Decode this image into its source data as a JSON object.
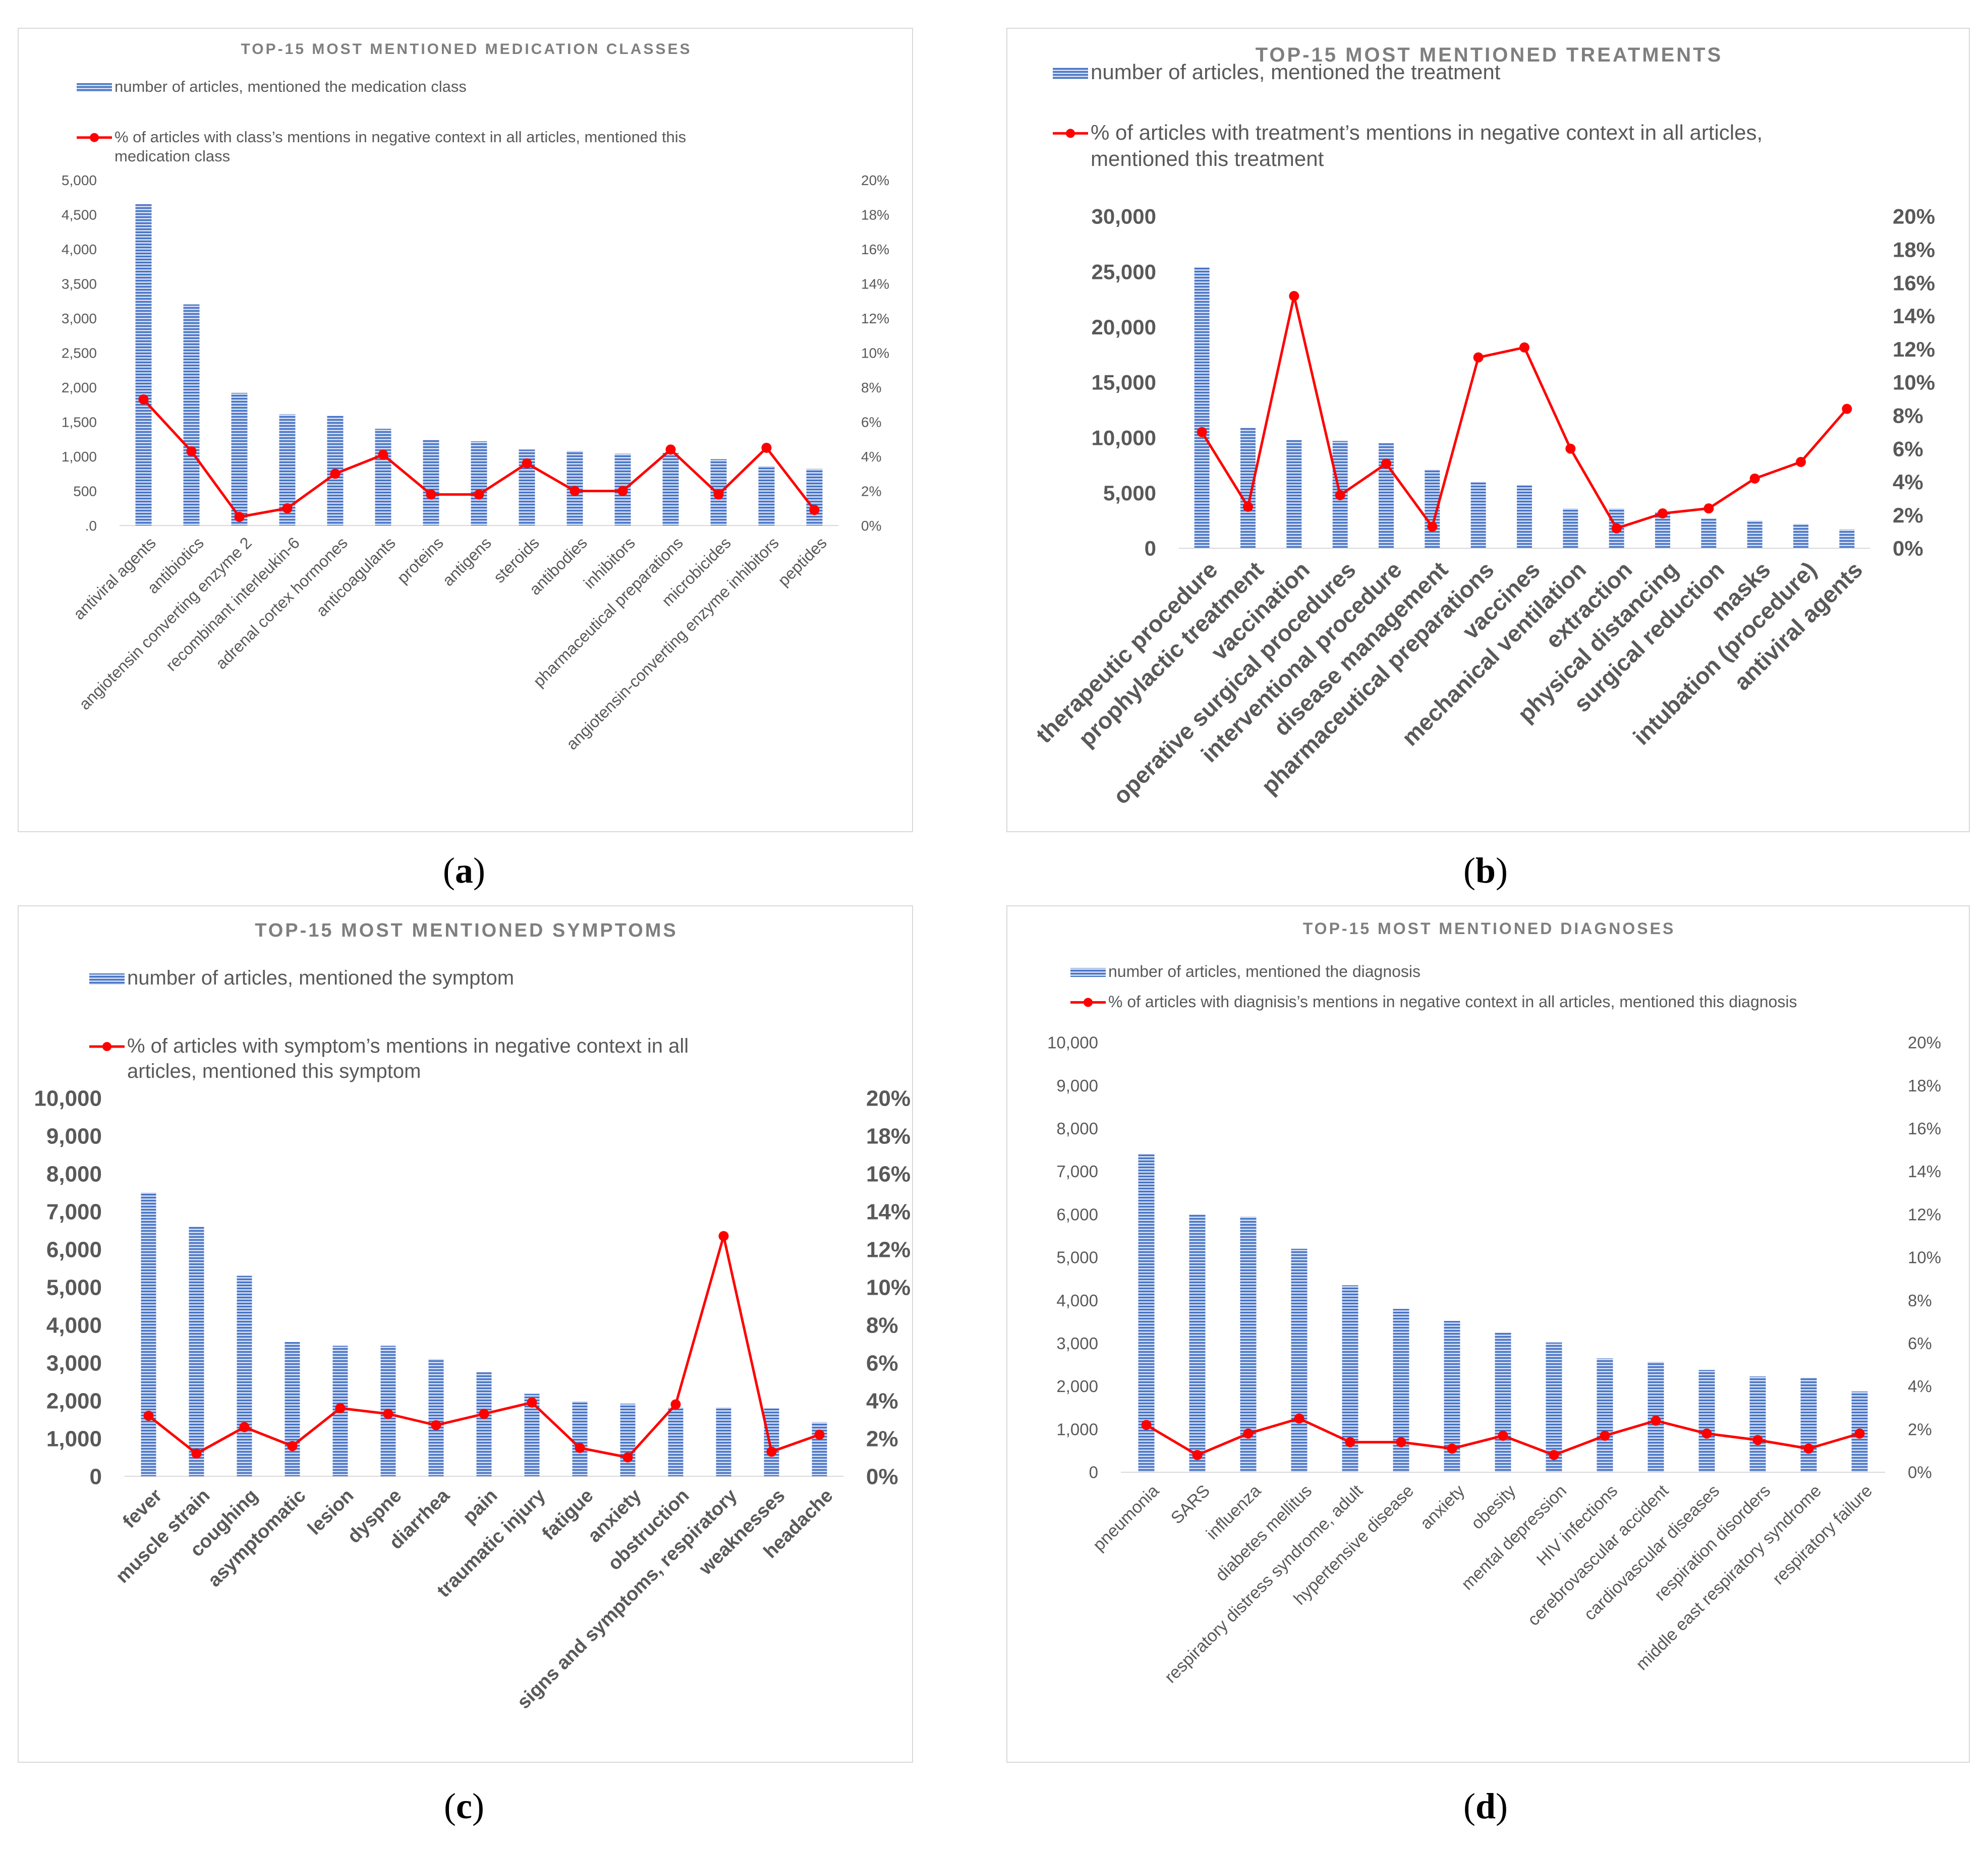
{
  "colors": {
    "bar": "#4472c4",
    "bar_light": "#c9d6ef",
    "line": "#ff0000",
    "axis_text": "#595959",
    "title_text": "#7f7f7f"
  },
  "chart_data": [
    {
      "id": "a",
      "type": "bar",
      "panel_label": "a",
      "title": "TOP-15 MOST MENTIONED MEDICATION CLASSES",
      "legend_bar": "number of articles, mentioned the medication class",
      "legend_line": "% of articles with class’s mentions in negative context in all articles, mentioned this medication class",
      "categories": [
        "antiviral agents",
        "antibiotics",
        "angiotensin converting enzyme 2",
        "recombinant interleukin-6",
        "adrenal cortex hormones",
        "anticoagulants",
        "proteins",
        "antigens",
        "steroids",
        "antibodies",
        "inhibitors",
        "pharmaceutical preparations",
        "microbicides",
        "angiotensin-converting enzyme inhibitors",
        "peptides"
      ],
      "series": [
        {
          "name": "number of articles, mentioned the medication class",
          "type": "bar",
          "axis": "left",
          "values": [
            4650,
            3200,
            1920,
            1610,
            1590,
            1400,
            1240,
            1220,
            1100,
            1080,
            1040,
            1050,
            960,
            860,
            820
          ]
        },
        {
          "name": "% of articles with class’s mentions in negative context in all articles, mentioned this medication class",
          "type": "line",
          "axis": "right",
          "values": [
            7.3,
            4.3,
            0.5,
            1.0,
            3.0,
            4.1,
            1.8,
            1.8,
            3.6,
            2.0,
            2.0,
            4.4,
            1.8,
            4.5,
            0.9
          ]
        }
      ],
      "ylim": [
        0,
        5000
      ],
      "y_ticks": [
        ".0",
        "500",
        "1,000",
        "1,500",
        "2,000",
        "2,500",
        "3,000",
        "3,500",
        "4,000",
        "4,500",
        "5,000"
      ],
      "y2lim": [
        0,
        20
      ],
      "y2_ticks": [
        "0%",
        "2%",
        "4%",
        "6%",
        "8%",
        "10%",
        "12%",
        "14%",
        "16%",
        "18%",
        "20%"
      ]
    },
    {
      "id": "b",
      "type": "bar",
      "panel_label": "b",
      "title": "TOP-15 MOST MENTIONED TREATMENTS",
      "legend_bar": "number of articles, mentioned the treatment",
      "legend_line": "% of articles with treatment’s mentions in negative context in all articles, mentioned this treatment",
      "categories": [
        "therapeutic procedure",
        "prophylactic treatment",
        "vaccination",
        "operative surgical procedures",
        "interventional procedure",
        "disease management",
        "pharmaceutical preparations",
        "vaccines",
        "mechanical ventilation",
        "extraction",
        "physical distancing",
        "surgical reduction",
        "masks",
        "intubation (procedure)",
        "antiviral agents"
      ],
      "series": [
        {
          "name": "number of articles, mentioned the treatment",
          "type": "bar",
          "axis": "left",
          "values": [
            25400,
            10900,
            9800,
            9700,
            9500,
            7100,
            6000,
            5700,
            3600,
            3600,
            3300,
            2700,
            2500,
            2200,
            1700
          ]
        },
        {
          "name": "% of articles with treatment’s mentions in negative context in all articles, mentioned this treatment",
          "type": "line",
          "axis": "right",
          "values": [
            7.0,
            2.5,
            15.2,
            3.2,
            5.1,
            1.3,
            11.5,
            12.1,
            6.0,
            1.2,
            2.1,
            2.4,
            4.2,
            5.2,
            8.4
          ]
        }
      ],
      "ylim": [
        0,
        30000
      ],
      "y_ticks": [
        "0",
        "5,000",
        "10,000",
        "15,000",
        "20,000",
        "25,000",
        "30,000"
      ],
      "y2lim": [
        0,
        20
      ],
      "y2_ticks": [
        "0%",
        "2%",
        "4%",
        "6%",
        "8%",
        "10%",
        "12%",
        "14%",
        "16%",
        "18%",
        "20%"
      ]
    },
    {
      "id": "c",
      "type": "bar",
      "panel_label": "c",
      "title": "TOP-15 MOST MENTIONED SYMPTOMS",
      "legend_bar": "number of articles, mentioned the symptom",
      "legend_line": "% of articles with symptom’s mentions in negative context in all articles, mentioned this symptom",
      "categories": [
        "fever",
        "muscle strain",
        "coughing",
        "asymptomatic",
        "lesion",
        "dyspne",
        "diarrhea",
        "pain",
        "traumatic injury",
        "fatigue",
        "anxiety",
        "obstruction",
        "signs and symptoms, respiratory",
        "weaknesses",
        "headache"
      ],
      "series": [
        {
          "name": "number of articles, mentioned the symptom",
          "type": "bar",
          "axis": "left",
          "values": [
            7500,
            6600,
            5300,
            3550,
            3450,
            3450,
            3100,
            2750,
            2180,
            1980,
            1920,
            1820,
            1820,
            1800,
            1430
          ]
        },
        {
          "name": "% of articles with symptom’s mentions in negative context in all articles, mentioned this symptom",
          "type": "line",
          "axis": "right",
          "values": [
            3.2,
            1.2,
            2.6,
            1.6,
            3.6,
            3.3,
            2.7,
            3.3,
            3.9,
            1.5,
            1.0,
            3.8,
            12.7,
            1.3,
            2.2
          ]
        }
      ],
      "ylim": [
        0,
        10000
      ],
      "y_ticks": [
        "0",
        "1,000",
        "2,000",
        "3,000",
        "4,000",
        "5,000",
        "6,000",
        "7,000",
        "8,000",
        "9,000",
        "10,000"
      ],
      "y2lim": [
        0,
        20
      ],
      "y2_ticks": [
        "0%",
        "2%",
        "4%",
        "6%",
        "8%",
        "10%",
        "12%",
        "14%",
        "16%",
        "18%",
        "20%"
      ]
    },
    {
      "id": "d",
      "type": "bar",
      "panel_label": "d",
      "title": "TOP-15 MOST MENTIONED DIAGNOSES",
      "legend_bar": "number of articles, mentioned the diagnosis",
      "legend_line": "% of articles with diagnisis’s mentions in negative context in all articles, mentioned this diagnosis",
      "categories": [
        "pneumonia",
        "SARS",
        "influenza",
        "diabetes mellitus",
        "respiratory distress syndrome, adult",
        "hypertensive disease",
        "anxiety",
        "obesity",
        "mental depression",
        "HIV infections",
        "cerebrovascular accident",
        "cardiovascular diseases",
        "respiration disorders",
        "middle east respiratory syndrome",
        "respiratory failure"
      ],
      "series": [
        {
          "name": "number of articles, mentioned the diagnosis",
          "type": "bar",
          "axis": "left",
          "values": [
            7400,
            6000,
            5950,
            5200,
            4350,
            3800,
            3520,
            3250,
            3020,
            2650,
            2570,
            2380,
            2230,
            2200,
            1880
          ]
        },
        {
          "name": "% of articles with diagnisis’s mentions in negative context in all articles, mentioned this diagnosis",
          "type": "line",
          "axis": "right",
          "values": [
            2.2,
            0.8,
            1.8,
            2.5,
            1.4,
            1.4,
            1.1,
            1.7,
            0.8,
            1.7,
            2.4,
            1.8,
            1.5,
            1.1,
            1.8
          ]
        }
      ],
      "ylim": [
        0,
        10000
      ],
      "y_ticks": [
        "0",
        "1,000",
        "2,000",
        "3,000",
        "4,000",
        "5,000",
        "6,000",
        "7,000",
        "8,000",
        "9,000",
        "10,000"
      ],
      "y2lim": [
        0,
        20
      ],
      "y2_ticks": [
        "0%",
        "2%",
        "4%",
        "6%",
        "8%",
        "10%",
        "12%",
        "14%",
        "16%",
        "18%",
        "20%"
      ]
    }
  ]
}
